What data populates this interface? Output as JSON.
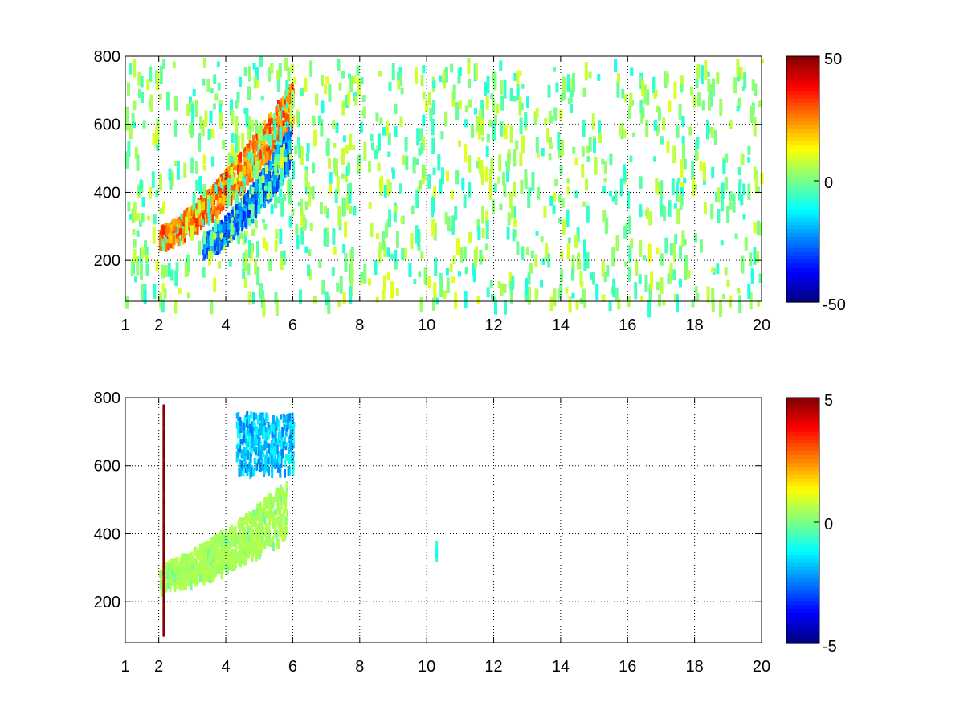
{
  "figure": {
    "background": "#ffffff"
  },
  "chart_data": [
    {
      "type": "heatmap",
      "title": "",
      "xlabel": "",
      "ylabel": "",
      "xlim": [
        1,
        20
      ],
      "ylim": [
        80,
        800
      ],
      "x_ticks": [
        "1",
        "2",
        "4",
        "6",
        "8",
        "10",
        "12",
        "14",
        "16",
        "18",
        "20"
      ],
      "y_ticks": [
        "200",
        "400",
        "600",
        "800"
      ],
      "grid": true,
      "colormap": "jet",
      "colorbar": {
        "min": -50,
        "max": 50,
        "ticks": [
          "50",
          "0",
          "-50"
        ]
      },
      "data_regions": [
        {
          "name": "band-positive",
          "x0": 2.0,
          "x1": 6.0,
          "y_center_at_x0": 275,
          "y_center_at_x1": 670,
          "width": 50,
          "value": 30
        },
        {
          "name": "band-negative",
          "x0": 3.3,
          "x1": 5.9,
          "y_center_at_x0": 255,
          "y_center_at_x1": 540,
          "width": 45,
          "value": -30
        },
        {
          "name": "scatter-noise",
          "x0": 1.0,
          "x1": 20.0,
          "y0": 80,
          "y1": 800,
          "value_range": [
            -10,
            10
          ]
        }
      ]
    },
    {
      "type": "heatmap",
      "title": "",
      "xlabel": "",
      "ylabel": "",
      "xlim": [
        1,
        20
      ],
      "ylim": [
        80,
        800
      ],
      "x_ticks": [
        "1",
        "2",
        "4",
        "6",
        "8",
        "10",
        "12",
        "14",
        "16",
        "18",
        "20"
      ],
      "y_ticks": [
        "200",
        "400",
        "600",
        "800"
      ],
      "grid": true,
      "colormap": "jet",
      "colorbar": {
        "min": -5,
        "max": 5,
        "ticks": [
          "5",
          "0",
          "-5"
        ]
      },
      "data_regions": [
        {
          "name": "band-lower",
          "x0": 2.0,
          "x1": 5.8,
          "y_center_at_x0": 280,
          "y_center_at_x1": 480,
          "width": 60,
          "value": 0.5
        },
        {
          "name": "cluster-upper",
          "x0": 4.3,
          "x1": 6.0,
          "y0": 590,
          "y1": 760,
          "value": -1.8
        },
        {
          "name": "line-x2.15",
          "x": 2.15,
          "y0": 100,
          "y1": 780,
          "value": 5
        },
        {
          "name": "spot-x10.3",
          "x": 10.3,
          "y0": 320,
          "y1": 380,
          "value": -1
        }
      ]
    }
  ]
}
